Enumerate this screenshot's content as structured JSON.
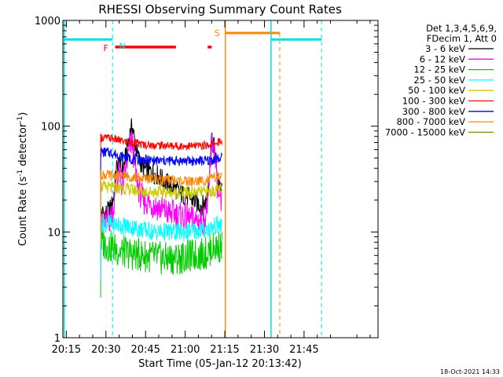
{
  "chart_data": {
    "type": "line",
    "title": "RHESSI Observing Summary Count Rates",
    "xlabel": "Start Time (05-Jan-12 20:13:42)",
    "ylabel": "Count Rate (s",
    "ylabel_sup": "-1",
    "ylabel_tail": " detector",
    "ylabel_sup2": "-1",
    "ylabel_close": ")",
    "y_scale": "log",
    "ylim": [
      1,
      1000
    ],
    "xlim_min": [
      13.7,
      133.0
    ],
    "x_ticks": [
      {
        "m": 15,
        "label": "20:15"
      },
      {
        "m": 30,
        "label": "20:30"
      },
      {
        "m": 45,
        "label": "20:45"
      },
      {
        "m": 60,
        "label": "21:00"
      },
      {
        "m": 75,
        "label": "21:15"
      },
      {
        "m": 90,
        "label": "21:30"
      },
      {
        "m": 105,
        "label": "21:45"
      }
    ],
    "y_ticks": [
      {
        "v": 1,
        "label": "1"
      },
      {
        "v": 10,
        "label": "10"
      },
      {
        "v": 100,
        "label": "100"
      },
      {
        "v": 1000,
        "label": "1000"
      }
    ],
    "legend_header": [
      "Det 1,3,4,5,6,9,",
      "FDecim 1, Att 0"
    ],
    "legend_placement": "right",
    "series": [
      {
        "name": "3 - 6 keV",
        "color": "#000000",
        "x": [
          28,
          30,
          31,
          32,
          33,
          34,
          35,
          36,
          37,
          38,
          39,
          40,
          41,
          42,
          43,
          44,
          46,
          48,
          50,
          52,
          54,
          56,
          58,
          60,
          62,
          64,
          66,
          67,
          68,
          69,
          70,
          71,
          72,
          73,
          74
        ],
        "y": [
          15,
          15,
          16,
          17,
          22,
          40,
          45,
          38,
          45,
          60,
          85,
          100,
          70,
          52,
          46,
          40,
          38,
          36,
          34,
          30,
          28,
          26,
          23,
          22,
          21,
          19,
          18,
          18,
          20,
          30,
          70,
          65,
          40,
          25,
          25
        ]
      },
      {
        "name": "6 - 12 keV",
        "color": "#ff00ff",
        "x": [
          28,
          30,
          31,
          32,
          33,
          34,
          35,
          36,
          37,
          38,
          39,
          40,
          41,
          42,
          43,
          44,
          46,
          48,
          50,
          52,
          54,
          56,
          58,
          60,
          62,
          64,
          66,
          67,
          68,
          69,
          70,
          71,
          72,
          73,
          74
        ],
        "y": [
          12,
          12,
          13,
          14,
          17,
          30,
          35,
          28,
          32,
          45,
          65,
          70,
          40,
          28,
          23,
          20,
          19,
          18,
          17,
          16,
          15,
          15,
          14,
          14,
          13,
          13,
          13,
          13,
          15,
          25,
          75,
          60,
          30,
          18,
          18
        ]
      },
      {
        "name": "12 - 25 keV",
        "color": "#00cc00",
        "x": [
          28,
          32,
          36,
          40,
          44,
          48,
          52,
          56,
          60,
          64,
          68,
          70,
          72,
          74
        ],
        "y": [
          8,
          7.2,
          6.5,
          6.2,
          6,
          5.8,
          5.6,
          5.6,
          5.8,
          6,
          6.3,
          7,
          7.3,
          7.3
        ]
      },
      {
        "name": "25 - 50 keV",
        "color": "#00ffff",
        "x": [
          28,
          32,
          36,
          40,
          44,
          48,
          52,
          56,
          60,
          64,
          68,
          70,
          72,
          74
        ],
        "y": [
          12,
          12,
          11.5,
          11,
          10.5,
          10,
          10,
          10,
          10,
          10.2,
          10.5,
          11,
          11.5,
          11.5
        ]
      },
      {
        "name": "50 - 100 keV",
        "color": "#cccc00",
        "x": [
          28,
          32,
          36,
          40,
          44,
          48,
          52,
          56,
          60,
          64,
          68,
          70,
          72,
          74
        ],
        "y": [
          27,
          26,
          26,
          25,
          24,
          24,
          24,
          23.5,
          23.5,
          23.5,
          24,
          24,
          25,
          25
        ]
      },
      {
        "name": "100 - 300 keV",
        "color": "#ff0000",
        "x": [
          28,
          32,
          36,
          40,
          44,
          48,
          52,
          56,
          60,
          64,
          68,
          70,
          72,
          74
        ],
        "y": [
          78,
          77,
          72,
          70,
          67,
          66,
          66,
          65,
          65,
          65,
          66,
          67,
          70,
          72
        ]
      },
      {
        "name": "300 - 800 keV",
        "color": "#0000ff",
        "x": [
          28,
          32,
          36,
          40,
          44,
          48,
          52,
          56,
          60,
          64,
          68,
          70,
          72,
          74
        ],
        "y": [
          57,
          56,
          52,
          49,
          48,
          47,
          47,
          47,
          47,
          47,
          47,
          48,
          49,
          50
        ]
      },
      {
        "name": "800 - 7000 keV",
        "color": "#ff8800",
        "x": [
          28,
          32,
          36,
          40,
          44,
          48,
          52,
          56,
          60,
          64,
          68,
          70,
          72,
          74
        ],
        "y": [
          35,
          34,
          34,
          33,
          32,
          32,
          31,
          31,
          30,
          30,
          31,
          32,
          33,
          33
        ]
      },
      {
        "name": "7000 - 15000 keV",
        "color": "#888800",
        "x": [],
        "y": []
      }
    ],
    "annotations": [
      {
        "text": "N",
        "color": "#00dddd"
      },
      {
        "text": "F",
        "color": "#ff0000"
      },
      {
        "text": "S",
        "color": "#ff8800"
      }
    ],
    "footer": "18-Oct-2021 14:33"
  }
}
